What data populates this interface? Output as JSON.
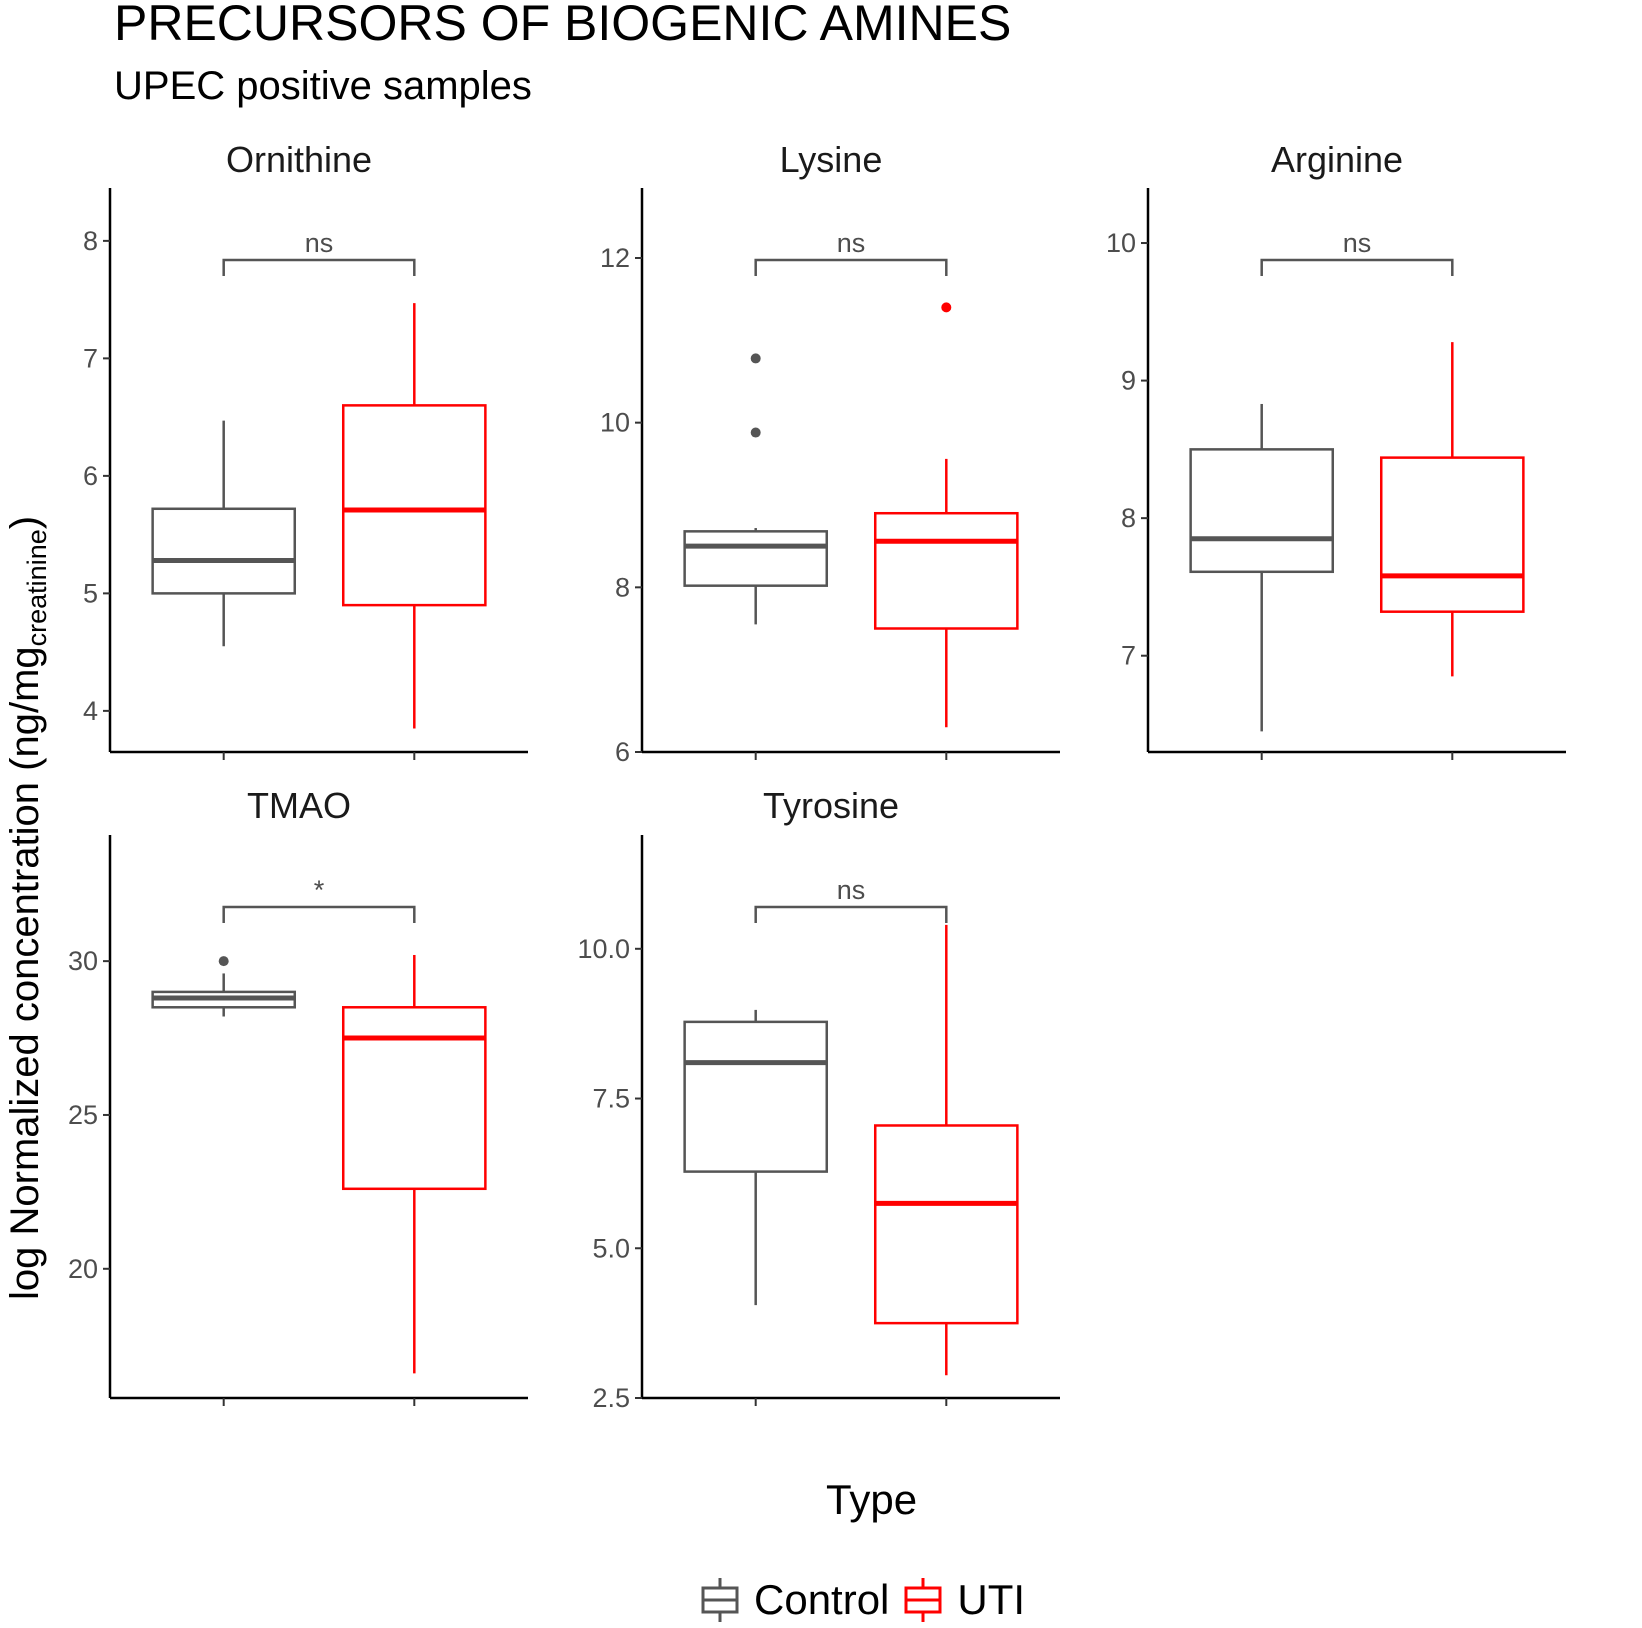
{
  "header": {
    "title": "PRECURSORS OF BIOGENIC AMINES",
    "subtitle": "UPEC positive samples"
  },
  "axes": {
    "ylabel_main": "log Normalized concentration (ng/mg",
    "ylabel_sub": "creatinine",
    "ylabel_close": ")",
    "xlabel": "Type"
  },
  "legend": {
    "items": [
      {
        "label": "Control",
        "color": "#555555"
      },
      {
        "label": "UTI",
        "color": "#ff0000"
      }
    ]
  },
  "colors": {
    "control": "#555555",
    "uti": "#ff0000",
    "axis": "#000000",
    "tick_text": "#4d4d4d",
    "bracket": "#555555"
  },
  "chart_data": {
    "type": "boxplot",
    "title": "PRECURSORS OF BIOGENIC AMINES",
    "subtitle": "UPEC positive samples",
    "xlabel": "Type",
    "ylabel": "log Normalized concentration (ng/mg creatinine)",
    "legend_position": "bottom",
    "legend_title": "",
    "categories": [
      "Control",
      "UTI"
    ],
    "grid": false,
    "facets": [
      {
        "name": "Ornithine",
        "yticks": [
          4,
          5,
          6,
          7,
          8
        ],
        "ylim": [
          3.65,
          8.45
        ],
        "significance": "ns",
        "boxes": [
          {
            "group": "Control",
            "whisker_low": 4.55,
            "q1": 5.0,
            "median": 5.28,
            "q3": 5.72,
            "whisker_high": 6.47,
            "outliers": []
          },
          {
            "group": "UTI",
            "whisker_low": 3.85,
            "q1": 4.9,
            "median": 5.71,
            "q3": 6.6,
            "whisker_high": 7.47,
            "outliers": []
          }
        ]
      },
      {
        "name": "Lysine",
        "yticks": [
          6,
          8,
          10,
          12
        ],
        "ylim": [
          6.0,
          12.85
        ],
        "significance": "ns",
        "boxes": [
          {
            "group": "Control",
            "whisker_low": 7.55,
            "q1": 8.02,
            "median": 8.5,
            "q3": 8.68,
            "whisker_high": 8.72,
            "outliers": [
              9.88,
              10.78
            ]
          },
          {
            "group": "UTI",
            "whisker_low": 6.3,
            "q1": 7.5,
            "median": 8.56,
            "q3": 8.9,
            "whisker_high": 9.56,
            "outliers": [
              11.4
            ]
          }
        ]
      },
      {
        "name": "Arginine",
        "yticks": [
          7,
          8,
          9,
          10
        ],
        "ylim": [
          6.3,
          10.4
        ],
        "significance": "ns",
        "boxes": [
          {
            "group": "Control",
            "whisker_low": 6.45,
            "q1": 7.61,
            "median": 7.85,
            "q3": 8.5,
            "whisker_high": 8.83,
            "outliers": []
          },
          {
            "group": "UTI",
            "whisker_low": 6.85,
            "q1": 7.32,
            "median": 7.58,
            "q3": 8.44,
            "whisker_high": 9.28,
            "outliers": []
          }
        ]
      },
      {
        "name": "TMAO",
        "yticks": [
          20,
          25,
          30
        ],
        "ylim": [
          15.8,
          34.1
        ],
        "significance": "*",
        "boxes": [
          {
            "group": "Control",
            "whisker_low": 28.2,
            "q1": 28.5,
            "median": 28.8,
            "q3": 29.0,
            "whisker_high": 29.6,
            "outliers": [
              30.0
            ]
          },
          {
            "group": "UTI",
            "whisker_low": 16.6,
            "q1": 22.6,
            "median": 27.5,
            "q3": 28.5,
            "whisker_high": 30.2,
            "outliers": []
          }
        ]
      },
      {
        "name": "Tyrosine",
        "yticks": [
          2.5,
          5.0,
          7.5,
          10.0
        ],
        "ylim": [
          2.5,
          11.9
        ],
        "ytick_labels": [
          "2.5",
          "5.0",
          "7.5",
          "10.0"
        ],
        "significance": "ns",
        "boxes": [
          {
            "group": "Control",
            "whisker_low": 4.05,
            "q1": 6.28,
            "median": 8.1,
            "q3": 8.78,
            "whisker_high": 8.98,
            "outliers": []
          },
          {
            "group": "UTI",
            "whisker_low": 2.88,
            "q1": 3.75,
            "median": 5.75,
            "q3": 7.05,
            "whisker_high": 10.4,
            "outliers": []
          }
        ]
      }
    ]
  }
}
